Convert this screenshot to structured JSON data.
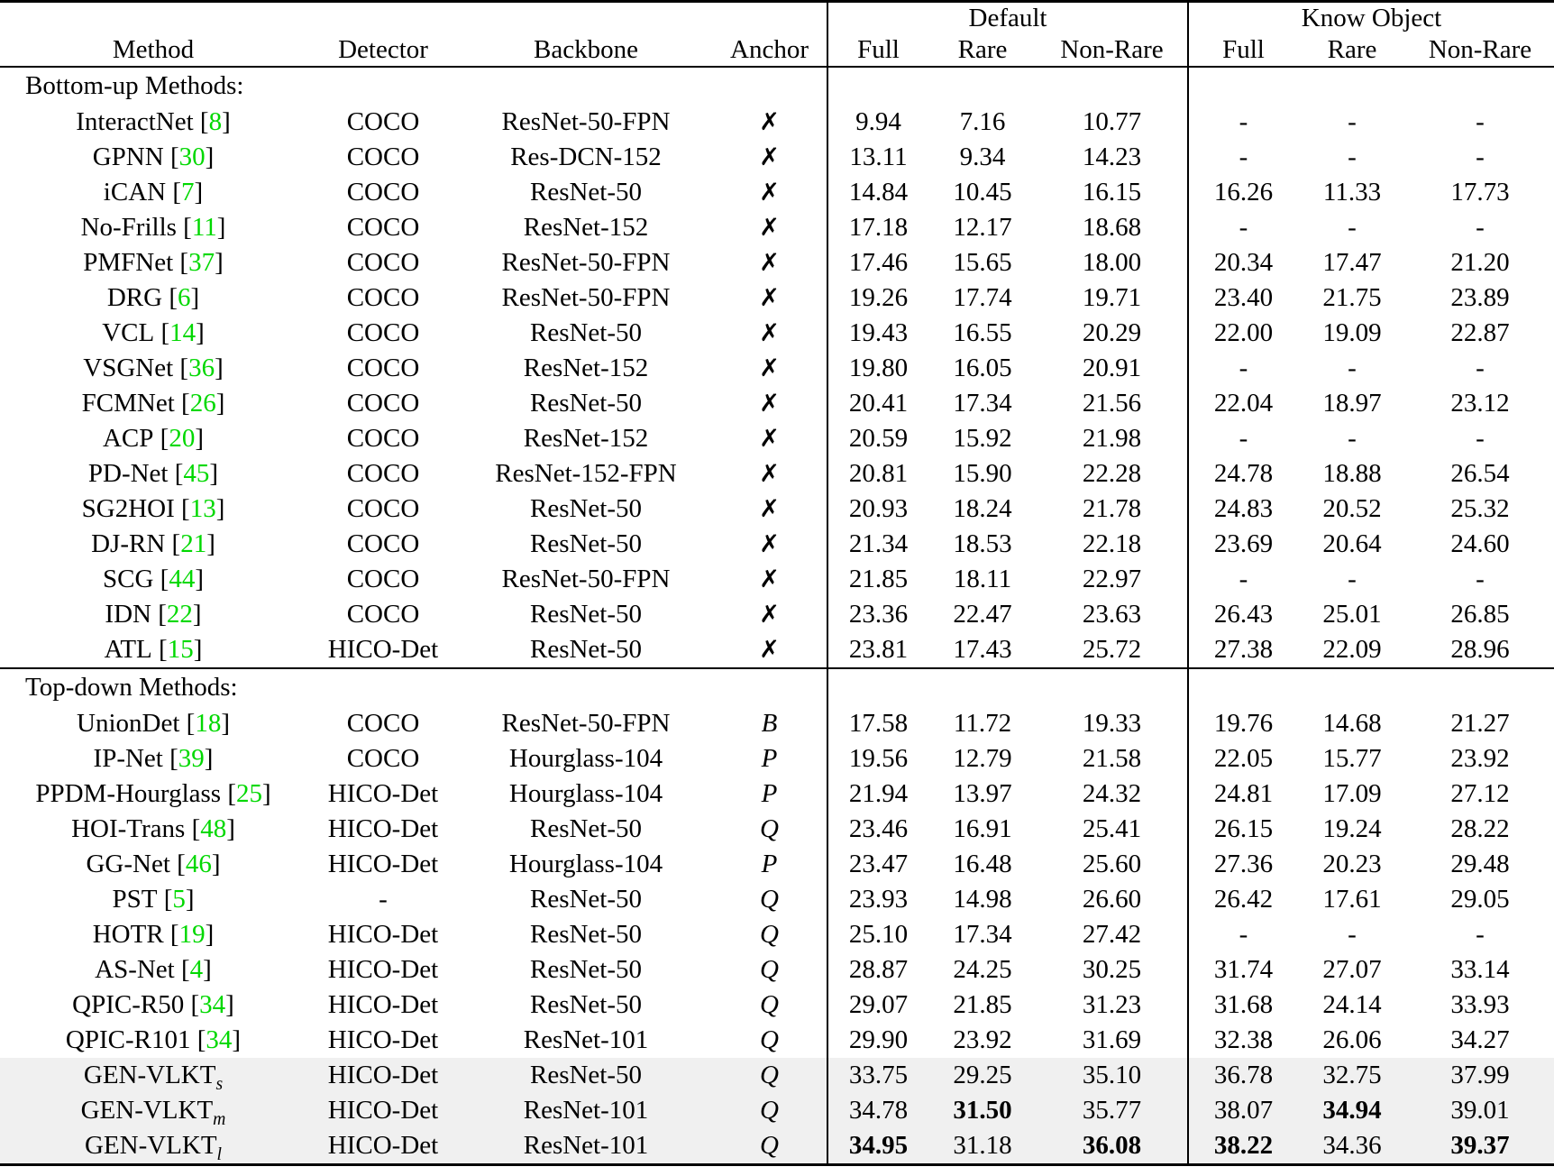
{
  "colors": {
    "citation": "#00d800",
    "highlight_row": "#f0f0f0",
    "text": "#000000",
    "background": "#ffffff"
  },
  "header": {
    "group_default": "Default",
    "group_know_object": "Know Object",
    "columns": {
      "method": "Method",
      "detector": "Detector",
      "backbone": "Backbone",
      "anchor": "Anchor",
      "full": "Full",
      "rare": "Rare",
      "non_rare": "Non-Rare"
    }
  },
  "sections": [
    {
      "title": "Bottom-up Methods:",
      "rows": [
        {
          "method": "InteractNet",
          "cite": "8",
          "detector": "COCO",
          "backbone": "ResNet-50-FPN",
          "anchor": "✗",
          "values": [
            "9.94",
            "7.16",
            "10.77",
            "-",
            "-",
            "-"
          ]
        },
        {
          "method": "GPNN",
          "cite": "30",
          "detector": "COCO",
          "backbone": "Res-DCN-152",
          "anchor": "✗",
          "values": [
            "13.11",
            "9.34",
            "14.23",
            "-",
            "-",
            "-"
          ]
        },
        {
          "method": "iCAN",
          "cite": "7",
          "detector": "COCO",
          "backbone": "ResNet-50",
          "anchor": "✗",
          "values": [
            "14.84",
            "10.45",
            "16.15",
            "16.26",
            "11.33",
            "17.73"
          ]
        },
        {
          "method": "No-Frills",
          "cite": "11",
          "detector": "COCO",
          "backbone": "ResNet-152",
          "anchor": "✗",
          "values": [
            "17.18",
            "12.17",
            "18.68",
            "-",
            "-",
            "-"
          ]
        },
        {
          "method": "PMFNet",
          "cite": "37",
          "detector": "COCO",
          "backbone": "ResNet-50-FPN",
          "anchor": "✗",
          "values": [
            "17.46",
            "15.65",
            "18.00",
            "20.34",
            "17.47",
            "21.20"
          ]
        },
        {
          "method": "DRG",
          "cite": "6",
          "detector": "COCO",
          "backbone": "ResNet-50-FPN",
          "anchor": "✗",
          "values": [
            "19.26",
            "17.74",
            "19.71",
            "23.40",
            "21.75",
            "23.89"
          ]
        },
        {
          "method": "VCL",
          "cite": "14",
          "detector": "COCO",
          "backbone": "ResNet-50",
          "anchor": "✗",
          "values": [
            "19.43",
            "16.55",
            "20.29",
            "22.00",
            "19.09",
            "22.87"
          ]
        },
        {
          "method": "VSGNet",
          "cite": "36",
          "detector": "COCO",
          "backbone": "ResNet-152",
          "anchor": "✗",
          "values": [
            "19.80",
            "16.05",
            "20.91",
            "-",
            "-",
            "-"
          ]
        },
        {
          "method": "FCMNet",
          "cite": "26",
          "detector": "COCO",
          "backbone": "ResNet-50",
          "anchor": "✗",
          "values": [
            "20.41",
            "17.34",
            "21.56",
            "22.04",
            "18.97",
            "23.12"
          ]
        },
        {
          "method": "ACP",
          "cite": "20",
          "detector": "COCO",
          "backbone": "ResNet-152",
          "anchor": "✗",
          "values": [
            "20.59",
            "15.92",
            "21.98",
            "-",
            "-",
            "-"
          ]
        },
        {
          "method": "PD-Net",
          "cite": "45",
          "detector": "COCO",
          "backbone": "ResNet-152-FPN",
          "anchor": "✗",
          "values": [
            "20.81",
            "15.90",
            "22.28",
            "24.78",
            "18.88",
            "26.54"
          ]
        },
        {
          "method": "SG2HOI",
          "cite": "13",
          "detector": "COCO",
          "backbone": "ResNet-50",
          "anchor": "✗",
          "values": [
            "20.93",
            "18.24",
            "21.78",
            "24.83",
            "20.52",
            "25.32"
          ]
        },
        {
          "method": "DJ-RN",
          "cite": "21",
          "detector": "COCO",
          "backbone": "ResNet-50",
          "anchor": "✗",
          "values": [
            "21.34",
            "18.53",
            "22.18",
            "23.69",
            "20.64",
            "24.60"
          ]
        },
        {
          "method": "SCG",
          "cite": "44",
          "detector": "COCO",
          "backbone": "ResNet-50-FPN",
          "anchor": "✗",
          "values": [
            "21.85",
            "18.11",
            "22.97",
            "-",
            "-",
            "-"
          ]
        },
        {
          "method": "IDN",
          "cite": "22",
          "detector": "COCO",
          "backbone": "ResNet-50",
          "anchor": "✗",
          "values": [
            "23.36",
            "22.47",
            "23.63",
            "26.43",
            "25.01",
            "26.85"
          ]
        },
        {
          "method": "ATL",
          "cite": "15",
          "detector": "HICO-Det",
          "backbone": "ResNet-50",
          "anchor": "✗",
          "values": [
            "23.81",
            "17.43",
            "25.72",
            "27.38",
            "22.09",
            "28.96"
          ]
        }
      ]
    },
    {
      "title": "Top-down Methods:",
      "rows": [
        {
          "method": "UnionDet",
          "cite": "18",
          "detector": "COCO",
          "backbone": "ResNet-50-FPN",
          "anchor": "B",
          "anchor_italic": true,
          "values": [
            "17.58",
            "11.72",
            "19.33",
            "19.76",
            "14.68",
            "21.27"
          ]
        },
        {
          "method": "IP-Net",
          "cite": "39",
          "detector": "COCO",
          "backbone": "Hourglass-104",
          "anchor": "P",
          "anchor_italic": true,
          "values": [
            "19.56",
            "12.79",
            "21.58",
            "22.05",
            "15.77",
            "23.92"
          ]
        },
        {
          "method": "PPDM-Hourglass",
          "cite": "25",
          "detector": "HICO-Det",
          "backbone": "Hourglass-104",
          "anchor": "P",
          "anchor_italic": true,
          "values": [
            "21.94",
            "13.97",
            "24.32",
            "24.81",
            "17.09",
            "27.12"
          ]
        },
        {
          "method": "HOI-Trans",
          "cite": "48",
          "detector": "HICO-Det",
          "backbone": "ResNet-50",
          "anchor": "Q",
          "anchor_italic": true,
          "values": [
            "23.46",
            "16.91",
            "25.41",
            "26.15",
            "19.24",
            "28.22"
          ]
        },
        {
          "method": "GG-Net",
          "cite": "46",
          "detector": "HICO-Det",
          "backbone": "Hourglass-104",
          "anchor": "P",
          "anchor_italic": true,
          "values": [
            "23.47",
            "16.48",
            "25.60",
            "27.36",
            "20.23",
            "29.48"
          ]
        },
        {
          "method": "PST",
          "cite": "5",
          "detector": "-",
          "backbone": "ResNet-50",
          "anchor": "Q",
          "anchor_italic": true,
          "values": [
            "23.93",
            "14.98",
            "26.60",
            "26.42",
            "17.61",
            "29.05"
          ]
        },
        {
          "method": "HOTR",
          "cite": "19",
          "detector": "HICO-Det",
          "backbone": "ResNet-50",
          "anchor": "Q",
          "anchor_italic": true,
          "values": [
            "25.10",
            "17.34",
            "27.42",
            "-",
            "-",
            "-"
          ]
        },
        {
          "method": "AS-Net",
          "cite": "4",
          "detector": "HICO-Det",
          "backbone": "ResNet-50",
          "anchor": "Q",
          "anchor_italic": true,
          "values": [
            "28.87",
            "24.25",
            "30.25",
            "31.74",
            "27.07",
            "33.14"
          ]
        },
        {
          "method": "QPIC-R50",
          "cite": "34",
          "detector": "HICO-Det",
          "backbone": "ResNet-50",
          "anchor": "Q",
          "anchor_italic": true,
          "values": [
            "29.07",
            "21.85",
            "31.23",
            "31.68",
            "24.14",
            "33.93"
          ]
        },
        {
          "method": "QPIC-R101",
          "cite": "34",
          "detector": "HICO-Det",
          "backbone": "ResNet-101",
          "anchor": "Q",
          "anchor_italic": true,
          "values": [
            "29.90",
            "23.92",
            "31.69",
            "32.38",
            "26.06",
            "34.27"
          ]
        },
        {
          "method": "GEN-VLKT",
          "subscript": "s",
          "detector": "HICO-Det",
          "backbone": "ResNet-50",
          "anchor": "Q",
          "anchor_italic": true,
          "highlight": true,
          "values": [
            "33.75",
            "29.25",
            "35.10",
            "36.78",
            "32.75",
            "37.99"
          ]
        },
        {
          "method": "GEN-VLKT",
          "subscript": "m",
          "detector": "HICO-Det",
          "backbone": "ResNet-101",
          "anchor": "Q",
          "anchor_italic": true,
          "highlight": true,
          "values": [
            "34.78",
            "31.50",
            "35.77",
            "38.07",
            "34.94",
            "39.01"
          ],
          "bold": [
            1,
            4
          ]
        },
        {
          "method": "GEN-VLKT",
          "subscript": "l",
          "detector": "HICO-Det",
          "backbone": "ResNet-101",
          "anchor": "Q",
          "anchor_italic": true,
          "highlight": true,
          "values": [
            "34.95",
            "31.18",
            "36.08",
            "38.22",
            "34.36",
            "39.37"
          ],
          "bold": [
            0,
            2,
            3,
            5
          ]
        }
      ]
    }
  ]
}
